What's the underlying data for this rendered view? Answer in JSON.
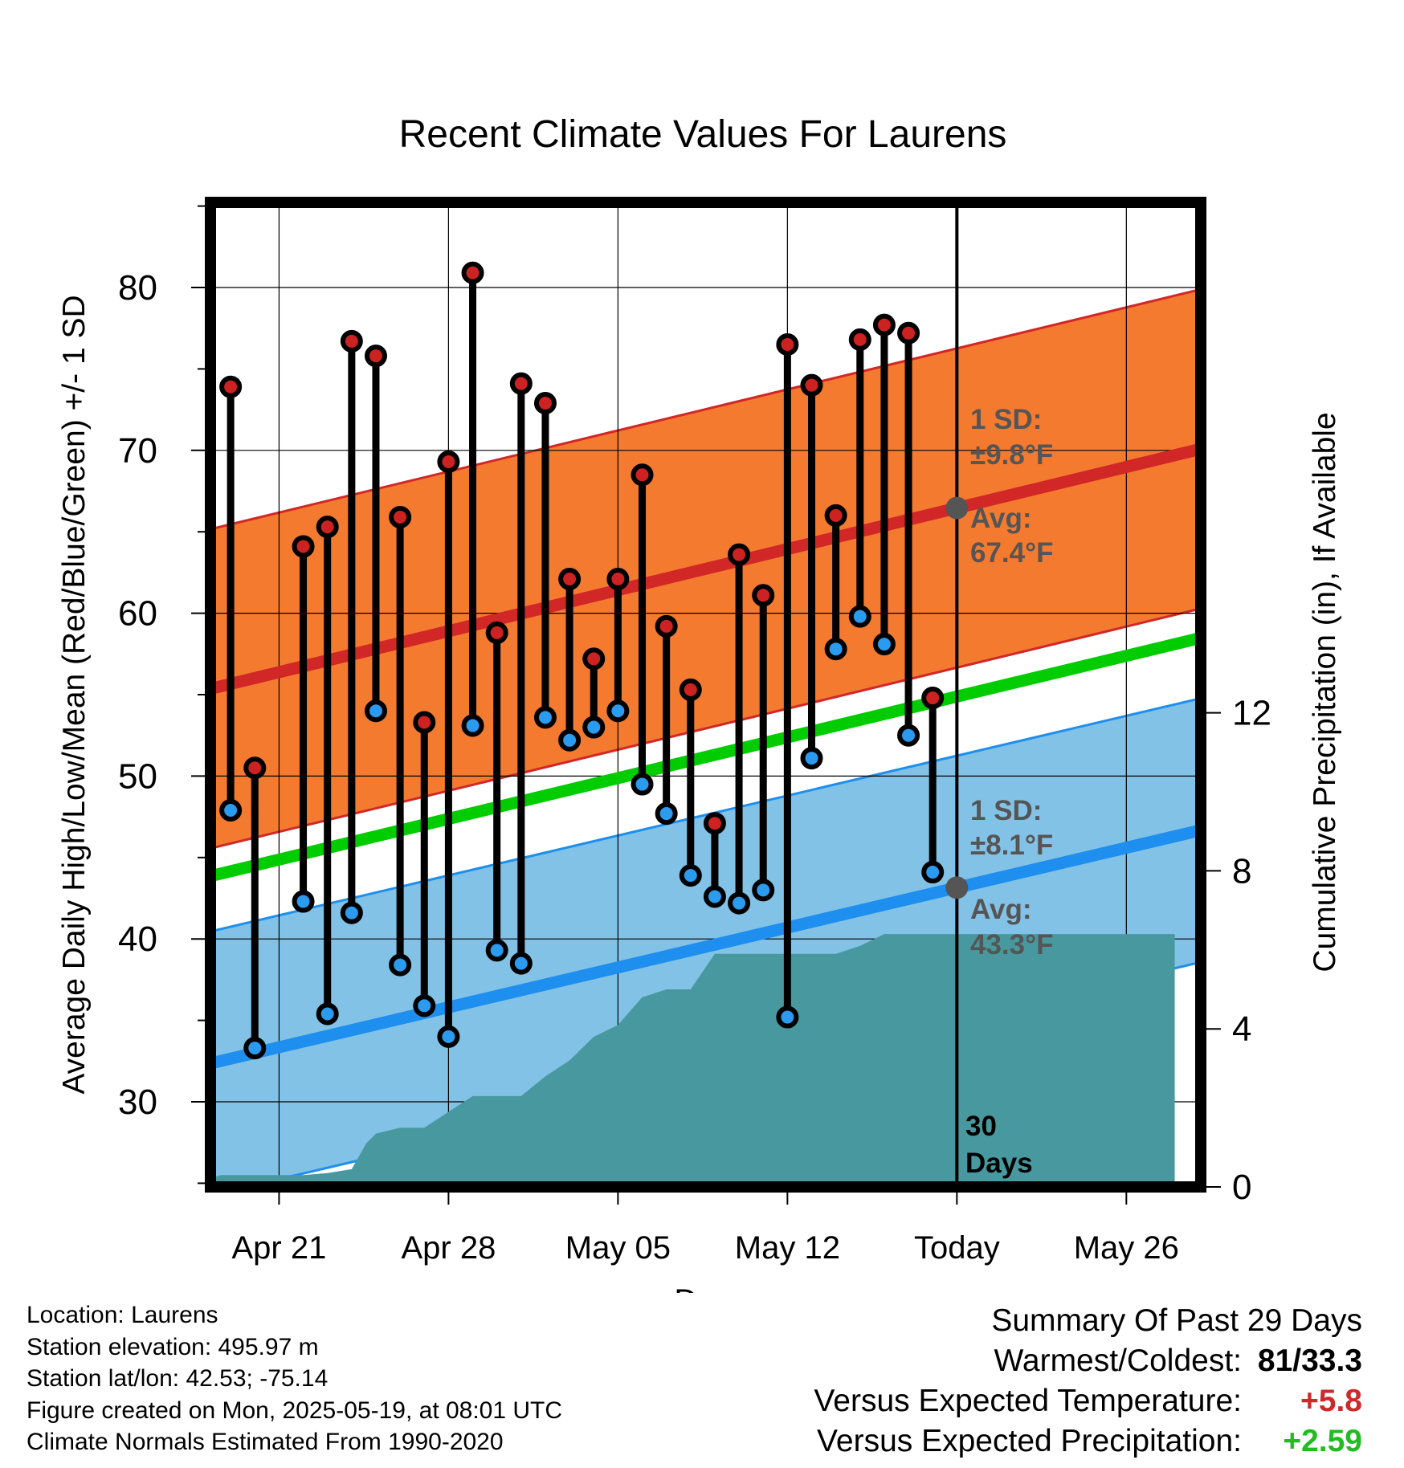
{
  "chart_data": {
    "type": "line",
    "title": "Recent Climate Values For Laurens",
    "xlabel": "Day",
    "ylabel": "Average Daily High/Low/Mean (Red/Blue/Green) +/- 1 SD",
    "y2label": "Cumulative Precipitation (in), If Available",
    "ylim": [
      25.5,
      86.5
    ],
    "y2lim": [
      0,
      14.4
    ],
    "yticks": [
      30,
      40,
      50,
      60,
      70,
      80
    ],
    "y2ticks": [
      0,
      4,
      8,
      12
    ],
    "xticks": [
      {
        "day": 3,
        "label": "Apr 21"
      },
      {
        "day": 10,
        "label": "Apr 28"
      },
      {
        "day": 17,
        "label": "May 05"
      },
      {
        "day": 24,
        "label": "May 12"
      },
      {
        "day": 31,
        "label": "Today"
      },
      {
        "day": 38,
        "label": "May 26"
      }
    ],
    "x_start": "Apr 18",
    "today_marker_label": [
      "30",
      "Days"
    ],
    "colors": {
      "high_band": "#f47a30",
      "high_line": "#d22727",
      "low_band": "#82c2e6",
      "low_line": "#1e8fee",
      "mean_line": "#00cc00",
      "precip": "#48999f",
      "high_point": "#cc2222",
      "low_point": "#2a9bef"
    },
    "normals": {
      "x": [
        0,
        40
      ],
      "mean": [
        43.8,
        58.1
      ],
      "high": [
        55.3,
        69.7
      ],
      "high_sd": 9.8,
      "low": [
        32.3,
        46.3
      ],
      "low_sd": 8.1
    },
    "annotations": {
      "high_sd": [
        "1 SD:",
        "±9.8°F"
      ],
      "high_avg": [
        "Avg:",
        "67.4°F"
      ],
      "low_sd": [
        "1 SD:",
        "±8.1°F"
      ],
      "low_avg": [
        "Avg:",
        "43.3°F"
      ]
    },
    "series": [
      {
        "name": "High",
        "values": [
          73.9,
          50.5,
          null,
          64.1,
          65.3,
          76.7,
          75.8,
          65.9,
          53.3,
          69.3,
          80.9,
          58.8,
          74.1,
          72.9,
          62.1,
          57.2,
          62.1,
          68.5,
          59.2,
          55.3,
          47.1,
          63.6,
          61.1,
          76.5,
          74.0,
          66.0,
          76.8,
          77.7,
          77.2,
          54.8
        ]
      },
      {
        "name": "Low",
        "values": [
          47.9,
          33.3,
          null,
          42.3,
          35.4,
          41.6,
          54.0,
          38.4,
          35.9,
          34.0,
          53.1,
          39.3,
          38.5,
          53.6,
          52.2,
          53.0,
          54.0,
          49.5,
          47.7,
          43.9,
          42.6,
          42.2,
          43.0,
          35.2,
          51.1,
          57.8,
          59.8,
          58.1,
          52.5,
          44.1
        ]
      }
    ],
    "precip": {
      "x": [
        0,
        0.6,
        1,
        2,
        3,
        4,
        5,
        6,
        6.6,
        7,
        8,
        9,
        10,
        11,
        12,
        13,
        14,
        15,
        16,
        17,
        18,
        19,
        20,
        21,
        22,
        23,
        24,
        25,
        26,
        27,
        28,
        29,
        30,
        31,
        40
      ],
      "y": [
        0.2,
        0.3,
        0.3,
        0.3,
        0.3,
        0.3,
        0.35,
        0.45,
        1.1,
        1.35,
        1.5,
        1.5,
        1.9,
        2.3,
        2.3,
        2.3,
        2.8,
        3.2,
        3.8,
        4.1,
        4.8,
        5.0,
        5.0,
        5.9,
        5.9,
        5.9,
        5.9,
        5.9,
        5.9,
        6.1,
        6.4,
        6.4,
        6.4,
        6.4,
        6.4
      ]
    }
  },
  "info": {
    "location": "Location: Laurens",
    "elevation": "Station elevation: 495.97 m",
    "latlon": "Station lat/lon: 42.53; -75.14",
    "created": "Figure created on Mon, 2025-05-19, at 08:01 UTC",
    "normals": "Climate Normals Estimated From 1990-2020"
  },
  "summary": {
    "title": "Summary Of Past 29 Days",
    "warmest_label": "Warmest/Coldest:",
    "warmest_value": "81/33.3",
    "temp_label": "Versus Expected Temperature:",
    "temp_value": "+5.8",
    "precip_label": "Versus Expected Precipitation:",
    "precip_value": "+2.59"
  }
}
